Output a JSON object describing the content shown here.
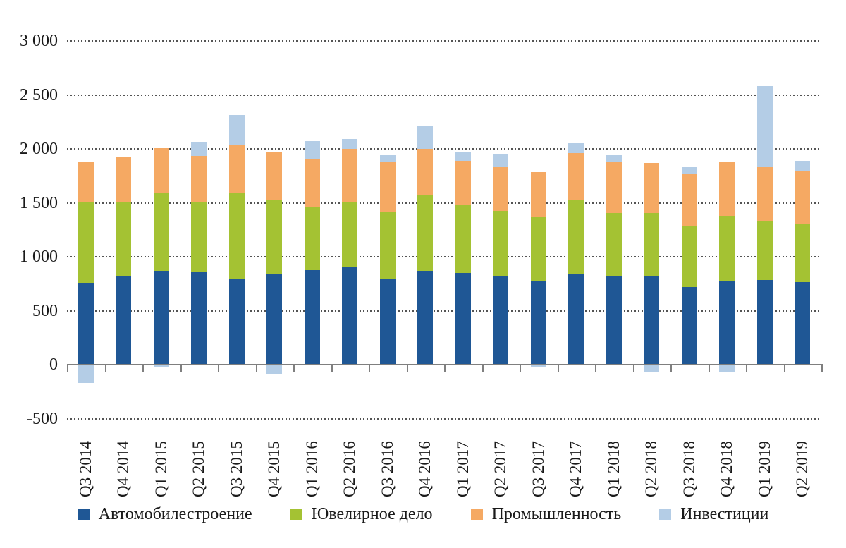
{
  "chart_data": {
    "type": "bar",
    "stacked": true,
    "orientation": "vertical",
    "title": "",
    "xlabel": "",
    "ylabel": "",
    "grid": "horizontal-dotted",
    "legend_position": "bottom",
    "ylim": [
      -500,
      3000
    ],
    "ytick_step": 500,
    "yticks": [
      {
        "value": 3000,
        "label": "3 000"
      },
      {
        "value": 2500,
        "label": "2 500"
      },
      {
        "value": 2000,
        "label": "2 000"
      },
      {
        "value": 1500,
        "label": "1 500"
      },
      {
        "value": 1000,
        "label": "1 000"
      },
      {
        "value": 500,
        "label": "500"
      },
      {
        "value": 0,
        "label": "0"
      },
      {
        "value": -500,
        "label": "-500"
      }
    ],
    "categories": [
      "Q3 2014",
      "Q4 2014",
      "Q1 2015",
      "Q2 2015",
      "Q3 2015",
      "Q4 2015",
      "Q1 2016",
      "Q2 2016",
      "Q3 2016",
      "Q4 2016",
      "Q1 2017",
      "Q2 2017",
      "Q3 2017",
      "Q4 2017",
      "Q1 2018",
      "Q2 2018",
      "Q3 2018",
      "Q4 2018",
      "Q1 2019",
      "Q2 2019"
    ],
    "series": [
      {
        "name": "Автомобилестроение",
        "color": "#1F5795",
        "values": [
          760,
          815,
          870,
          855,
          800,
          845,
          875,
          900,
          790,
          870,
          850,
          825,
          780,
          840,
          815,
          820,
          720,
          775,
          785,
          765
        ]
      },
      {
        "name": "Ювелирное дело",
        "color": "#A4C233",
        "values": [
          750,
          695,
          715,
          655,
          795,
          675,
          585,
          605,
          630,
          705,
          625,
          600,
          590,
          685,
          590,
          585,
          570,
          605,
          550,
          545
        ]
      },
      {
        "name": "Промышленность",
        "color": "#F5A963",
        "values": [
          375,
          420,
          420,
          425,
          435,
          450,
          450,
          495,
          465,
          425,
          415,
          405,
          415,
          435,
          480,
          465,
          475,
          495,
          495,
          490
        ]
      },
      {
        "name": "Инвестиции",
        "color": "#B4CDE6",
        "values": [
          -170,
          0,
          -25,
          125,
          285,
          -85,
          160,
          90,
          55,
          215,
          80,
          115,
          -25,
          95,
          55,
          -65,
          65,
          -65,
          750,
          90
        ]
      }
    ],
    "colors": {
      "grid_dots": "#545454",
      "axis_line": "#7f7f7f",
      "text": "#1a1a1a",
      "background": "#ffffff"
    }
  }
}
